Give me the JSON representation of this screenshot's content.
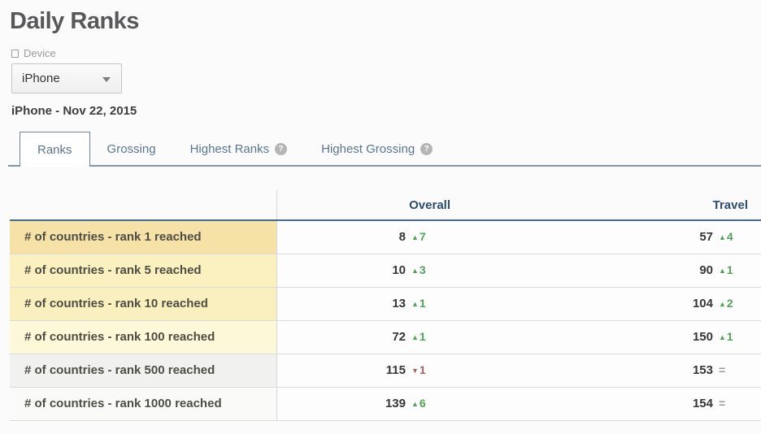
{
  "page": {
    "title": "Daily Ranks",
    "subtitle": "iPhone - Nov 22, 2015"
  },
  "device_filter": {
    "label": "Device",
    "selected": "iPhone"
  },
  "tabs": [
    {
      "id": "ranks",
      "label": "Ranks",
      "active": true,
      "help_icon": false
    },
    {
      "id": "grossing",
      "label": "Grossing",
      "active": false,
      "help_icon": false
    },
    {
      "id": "highest-ranks",
      "label": "Highest Ranks",
      "active": false,
      "help_icon": true
    },
    {
      "id": "highest-grossing",
      "label": "Highest Grossing",
      "active": false,
      "help_icon": true
    }
  ],
  "table": {
    "columns": [
      "Overall",
      "Travel"
    ],
    "rows": [
      {
        "label": "# of countries - rank 1 reached",
        "label_bg": "#f6e2a6",
        "overall": {
          "value": "8",
          "delta": 7,
          "direction": "up"
        },
        "travel": {
          "value": "57",
          "delta": 4,
          "direction": "up"
        }
      },
      {
        "label": "# of countries - rank 5 reached",
        "label_bg": "#faf0c0",
        "overall": {
          "value": "10",
          "delta": 3,
          "direction": "up"
        },
        "travel": {
          "value": "90",
          "delta": 1,
          "direction": "up"
        }
      },
      {
        "label": "# of countries - rank 10 reached",
        "label_bg": "#faf0bf",
        "overall": {
          "value": "13",
          "delta": 1,
          "direction": "up"
        },
        "travel": {
          "value": "104",
          "delta": 2,
          "direction": "up"
        }
      },
      {
        "label": "# of countries - rank 100 reached",
        "label_bg": "#fcf8d8",
        "overall": {
          "value": "72",
          "delta": 1,
          "direction": "up"
        },
        "travel": {
          "value": "150",
          "delta": 1,
          "direction": "up"
        }
      },
      {
        "label": "# of countries - rank 500 reached",
        "label_bg": "#f1f1f0",
        "overall": {
          "value": "115",
          "delta": 1,
          "direction": "down"
        },
        "travel": {
          "value": "153",
          "delta": 0,
          "direction": "none"
        }
      },
      {
        "label": "# of countries - rank 1000 reached",
        "label_bg": "#fafaf8",
        "overall": {
          "value": "139",
          "delta": 6,
          "direction": "up"
        },
        "travel": {
          "value": "154",
          "delta": 0,
          "direction": "none"
        }
      }
    ]
  },
  "icons": {
    "up_arrow": "▲",
    "down_arrow": "▼",
    "no_change": "=",
    "help": "?"
  },
  "colors": {
    "up": "#52a05a",
    "down": "#ad5f5f",
    "no_change": "#999999",
    "header_text": "#2d4d70",
    "header_underline": "#456a90",
    "tab_text": "#5b7690",
    "tab_border": "#72839b"
  }
}
